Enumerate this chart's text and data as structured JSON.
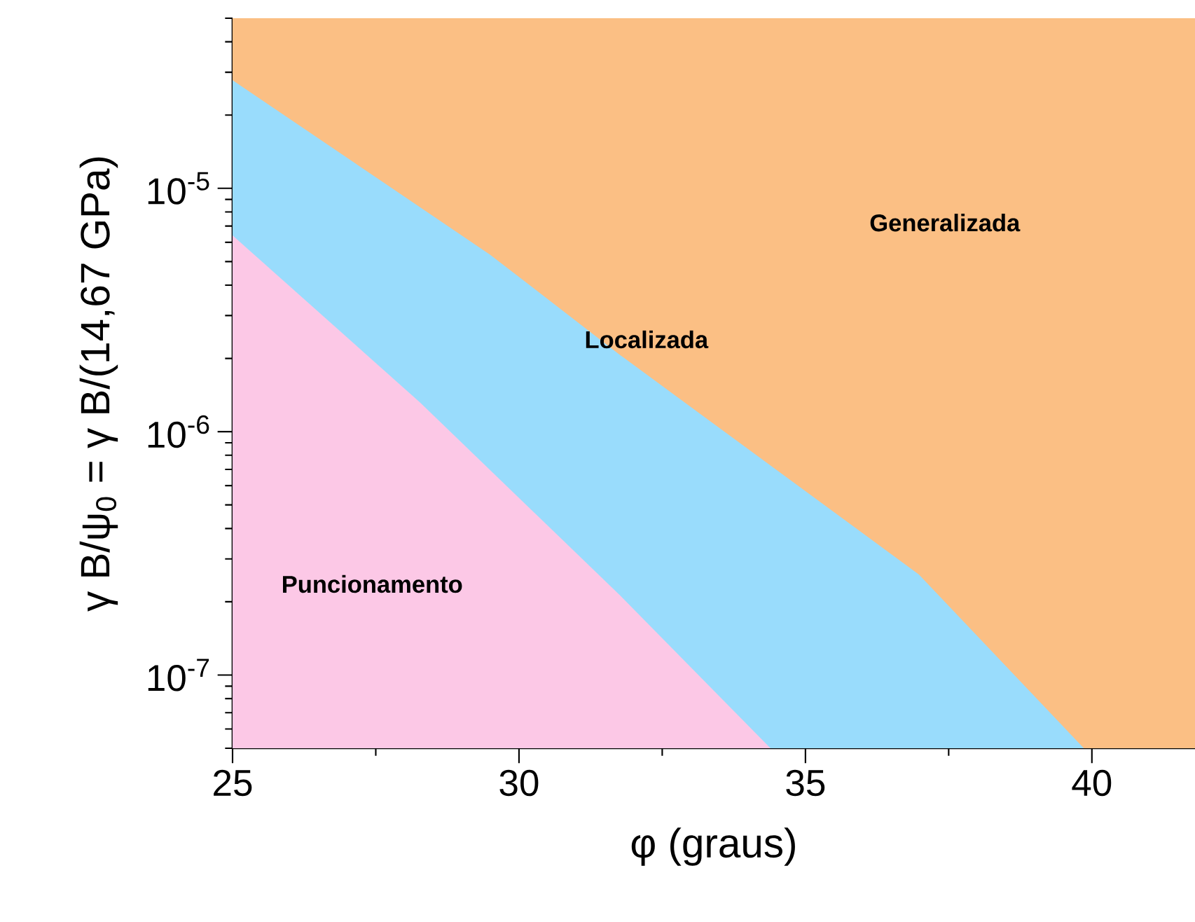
{
  "chart_data": {
    "type": "area",
    "xlabel": "φ (graus)",
    "ylabel": "γ B/ψ$_{0}$ = γ B/(14,67 GPa)",
    "log": "y",
    "xlim": [
      25,
      41.8
    ],
    "ylim": [
      5e-08,
      5e-05
    ],
    "xticks": [
      25,
      {
        "value": 27.5,
        "label": null
      },
      30,
      {
        "value": 32.5,
        "label": null
      },
      35,
      {
        "value": 37.5,
        "label": null
      },
      40
    ],
    "yticks": [
      {
        "value": 5e-08,
        "label": null
      },
      {
        "value": 6e-08,
        "label": null
      },
      {
        "value": 7e-08,
        "label": null
      },
      {
        "value": 8e-08,
        "label": null
      },
      {
        "value": 9e-08,
        "label": null
      },
      {
        "value": 1e-07,
        "label": "10$^{-7}$"
      },
      {
        "value": 2e-07,
        "label": null
      },
      {
        "value": 3e-07,
        "label": null
      },
      {
        "value": 4e-07,
        "label": null
      },
      {
        "value": 5e-07,
        "label": null
      },
      {
        "value": 6e-07,
        "label": null
      },
      {
        "value": 7e-07,
        "label": null
      },
      {
        "value": 8e-07,
        "label": null
      },
      {
        "value": 9e-07,
        "label": null
      },
      {
        "value": 1e-06,
        "label": "10$^{-6}$"
      },
      {
        "value": 2e-06,
        "label": null
      },
      {
        "value": 3e-06,
        "label": null
      },
      {
        "value": 4e-06,
        "label": null
      },
      {
        "value": 5e-06,
        "label": null
      },
      {
        "value": 6e-06,
        "label": null
      },
      {
        "value": 7e-06,
        "label": null
      },
      {
        "value": 8e-06,
        "label": null
      },
      {
        "value": 9e-06,
        "label": null
      },
      {
        "value": 1e-05,
        "label": "10$^{-5}$"
      },
      {
        "value": 2e-05,
        "label": null
      },
      {
        "value": 3e-05,
        "label": null
      },
      {
        "value": 4e-05,
        "label": null
      },
      {
        "value": 5e-05,
        "label": null
      }
    ],
    "series": [
      {
        "name": "Puncionamento",
        "color": "#fcc8e6",
        "x": [
          25,
          28.27,
          31.76,
          34.39
        ],
        "values": [
          6.4e-06,
          1.32e-06,
          2.13e-07,
          5e-08
        ]
      },
      {
        "name": "Localizada",
        "color": "#99dcfc",
        "x": [
          25,
          29.49,
          31.76,
          36.98,
          39.86
        ],
        "values": [
          2.78e-05,
          5.35e-06,
          2.07e-06,
          2.59e-07,
          5e-08
        ]
      }
    ],
    "bands": [
      {
        "axis": "y",
        "from": 5e-08,
        "to": 5e-05,
        "label": "Generalizada",
        "color": "#fbbf84"
      }
    ]
  }
}
